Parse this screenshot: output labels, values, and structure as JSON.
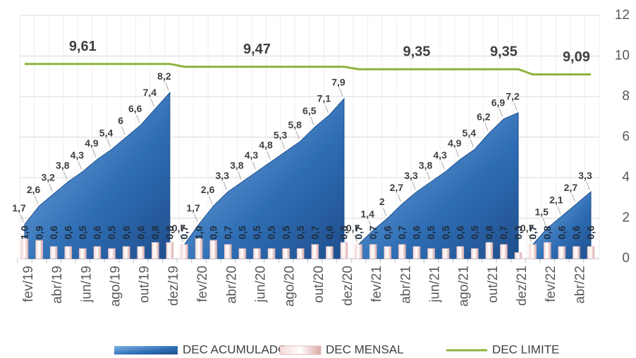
{
  "chart_data": {
    "type": "combo",
    "categories": [
      "fev/19",
      null,
      "abr/19",
      null,
      "jun/19",
      null,
      "ago/19",
      null,
      "out/19",
      null,
      "dez/19",
      null,
      "fev/20",
      null,
      "abr/20",
      null,
      "jun/20",
      null,
      "ago/20",
      null,
      "out/20",
      null,
      "dez/20",
      null,
      "fev/21",
      null,
      "abr/21",
      null,
      "jun/21",
      null,
      "ago/21",
      null,
      "out/21",
      null,
      "dez/21",
      null,
      "fev/22",
      null,
      "abr/22",
      null
    ],
    "series": [
      {
        "name": "DEC ACUMULADO",
        "type": "area",
        "color": "#2e75b6",
        "values": [
          1.7,
          2.6,
          3.2,
          3.8,
          4.3,
          4.9,
          5.4,
          6,
          6.6,
          7.4,
          8.2,
          0.7,
          1.7,
          2.6,
          3.3,
          3.8,
          4.3,
          4.8,
          5.3,
          5.8,
          6.5,
          7.1,
          7.9,
          0.7,
          1.4,
          2,
          2.7,
          3.3,
          3.8,
          4.3,
          4.9,
          5.4,
          6.2,
          6.9,
          7.2,
          0.7,
          1.5,
          2.1,
          2.7,
          3.3
        ],
        "value_labels": [
          "1,7",
          "2,6",
          "3,2",
          "3,8",
          "4,3",
          "4,9",
          "5,4",
          "6",
          "6,6",
          "7,4",
          "8,2",
          "0,7",
          "1,7",
          "2,6",
          "3,3",
          "3,8",
          "4,3",
          "4,8",
          "5,3",
          "5,8",
          "6,5",
          "7,1",
          "7,9",
          "0,7",
          "1,4",
          "2",
          "2,7",
          "3,3",
          "3,8",
          "4,3",
          "4,9",
          "5,4",
          "6,2",
          "6,9",
          "7,2",
          "0,7",
          "1,5",
          "2,1",
          "2,7",
          "3,3"
        ]
      },
      {
        "name": "DEC MENSAL",
        "type": "bar",
        "color": "#e6b9b8",
        "values": [
          1.0,
          0.9,
          0.6,
          0.6,
          0.5,
          0.6,
          0.5,
          0.6,
          0.6,
          0.8,
          0.8,
          0.7,
          1.0,
          0.9,
          0.7,
          0.5,
          0.5,
          0.5,
          0.5,
          0.5,
          0.7,
          0.6,
          0.8,
          0.7,
          0.7,
          0.6,
          0.7,
          0.6,
          0.5,
          0.5,
          0.6,
          0.5,
          0.8,
          0.7,
          0.3,
          0.7,
          0.8,
          0.6,
          0.6,
          0.6
        ],
        "value_labels": [
          "1,0",
          "0,9",
          "0,6",
          "0,6",
          "0,5",
          "0,6",
          "0,5",
          "0,6",
          "0,6",
          "0,8",
          "0,8",
          "0,7",
          "1,0",
          "0,9",
          "0,7",
          "0,5",
          "0,5",
          "0,5",
          "0,5",
          "0,5",
          "0,7",
          "0,6",
          "0,8",
          "0,7",
          "0,7",
          "0,6",
          "0,7",
          "0,6",
          "0,5",
          "0,5",
          "0,6",
          "0,5",
          "0,8",
          "0,7",
          "0,3",
          "0,7",
          "0,8",
          "0,6",
          "0,6",
          "0,6"
        ]
      },
      {
        "name": "DEC LIMITE",
        "type": "line",
        "color": "#8db33c",
        "values": [
          9.61,
          9.61,
          9.61,
          9.61,
          9.61,
          9.61,
          9.61,
          9.61,
          9.61,
          9.61,
          9.61,
          9.47,
          9.47,
          9.47,
          9.47,
          9.47,
          9.47,
          9.47,
          9.47,
          9.47,
          9.47,
          9.47,
          9.47,
          9.35,
          9.35,
          9.35,
          9.35,
          9.35,
          9.35,
          9.35,
          9.35,
          9.35,
          9.35,
          9.35,
          9.35,
          9.09,
          9.09,
          9.09,
          9.09,
          9.09
        ],
        "value_labels": [
          null,
          null,
          null,
          null,
          "9,61",
          null,
          null,
          null,
          null,
          null,
          null,
          null,
          null,
          null,
          null,
          null,
          "9,47",
          null,
          null,
          null,
          null,
          null,
          null,
          null,
          null,
          null,
          null,
          "9,35",
          null,
          null,
          null,
          null,
          null,
          "9,35",
          null,
          null,
          null,
          null,
          "9,09",
          null
        ]
      }
    ],
    "ylim": [
      0,
      12
    ],
    "yticks": [
      0,
      2,
      4,
      6,
      8,
      10,
      12
    ],
    "grid": true,
    "legend": "bottom"
  }
}
